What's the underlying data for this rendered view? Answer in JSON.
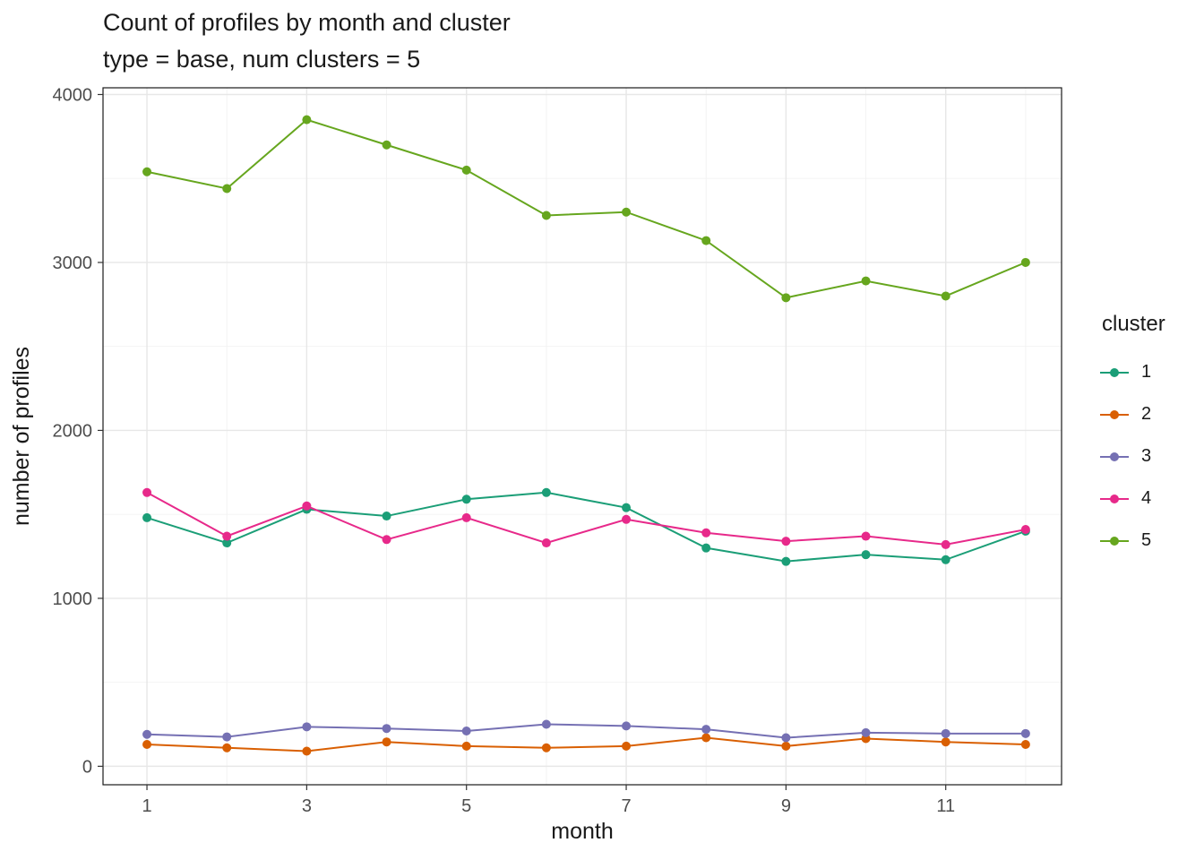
{
  "title": "Count of profiles by month and cluster",
  "subtitle": "type = base, num clusters = 5",
  "chart_data": {
    "type": "line",
    "title": "Count of profiles by month and cluster",
    "subtitle": "type = base, num clusters = 5",
    "xlabel": "month",
    "ylabel": "number of profiles",
    "legend_title": "cluster",
    "legend_position": "right",
    "grid": true,
    "x": [
      1,
      2,
      3,
      4,
      5,
      6,
      7,
      8,
      9,
      10,
      11,
      12
    ],
    "xticks": [
      1,
      3,
      5,
      7,
      9,
      11
    ],
    "xminor": [
      2,
      4,
      6,
      8,
      10,
      12
    ],
    "ylim": [
      0,
      4000
    ],
    "yticks": [
      0,
      1000,
      2000,
      3000,
      4000
    ],
    "yminor": [
      500,
      1500,
      2500,
      3500
    ],
    "series": [
      {
        "name": "1",
        "color": "#1B9E77",
        "values": [
          1480,
          1330,
          1530,
          1490,
          1590,
          1630,
          1540,
          1300,
          1220,
          1260,
          1230,
          1400
        ]
      },
      {
        "name": "2",
        "color": "#D95F02",
        "values": [
          130,
          110,
          90,
          145,
          120,
          110,
          120,
          170,
          120,
          165,
          145,
          130
        ]
      },
      {
        "name": "3",
        "color": "#7570B3",
        "values": [
          190,
          175,
          235,
          225,
          210,
          250,
          240,
          220,
          170,
          200,
          195,
          195
        ]
      },
      {
        "name": "4",
        "color": "#E7298A",
        "values": [
          1630,
          1370,
          1550,
          1350,
          1480,
          1330,
          1470,
          1390,
          1340,
          1370,
          1320,
          1410
        ]
      },
      {
        "name": "5",
        "color": "#66A61E",
        "values": [
          3540,
          3440,
          3850,
          3700,
          3550,
          3280,
          3300,
          3130,
          2790,
          2890,
          2800,
          3000
        ]
      }
    ],
    "style": {
      "major_grid_color": "#e7e7e7",
      "minor_grid_color": "#f2f2f2",
      "panel_border_color": "#1a1a1a",
      "tick_label_color": "#4d4d4d",
      "axis_title_color": "#1a1a1a"
    }
  }
}
